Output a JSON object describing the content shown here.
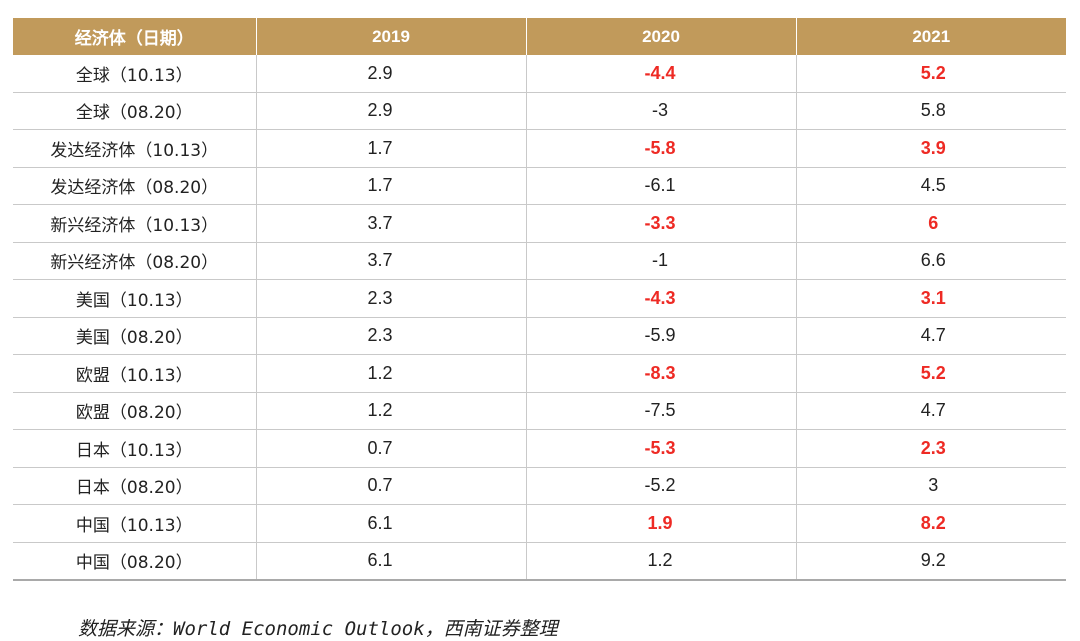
{
  "table": {
    "headers": [
      "经济体（日期）",
      "2019",
      "2020",
      "2021"
    ],
    "rows": [
      {
        "label": "全球（10.13）",
        "y2019": "2.9",
        "y2020": "-4.4",
        "y2021": "5.2",
        "highlight": true
      },
      {
        "label": "全球（08.20）",
        "y2019": "2.9",
        "y2020": "-3",
        "y2021": "5.8",
        "highlight": false
      },
      {
        "label": "发达经济体（10.13）",
        "y2019": "1.7",
        "y2020": "-5.8",
        "y2021": "3.9",
        "highlight": true
      },
      {
        "label": "发达经济体（08.20）",
        "y2019": "1.7",
        "y2020": "-6.1",
        "y2021": "4.5",
        "highlight": false
      },
      {
        "label": "新兴经济体（10.13）",
        "y2019": "3.7",
        "y2020": "-3.3",
        "y2021": "6",
        "highlight": true
      },
      {
        "label": "新兴经济体（08.20）",
        "y2019": "3.7",
        "y2020": "-1",
        "y2021": "6.6",
        "highlight": false
      },
      {
        "label": "美国（10.13）",
        "y2019": "2.3",
        "y2020": "-4.3",
        "y2021": "3.1",
        "highlight": true
      },
      {
        "label": "美国（08.20）",
        "y2019": "2.3",
        "y2020": "-5.9",
        "y2021": "4.7",
        "highlight": false
      },
      {
        "label": "欧盟（10.13）",
        "y2019": "1.2",
        "y2020": "-8.3",
        "y2021": "5.2",
        "highlight": true
      },
      {
        "label": "欧盟（08.20）",
        "y2019": "1.2",
        "y2020": "-7.5",
        "y2021": "4.7",
        "highlight": false
      },
      {
        "label": "日本（10.13）",
        "y2019": "0.7",
        "y2020": "-5.3",
        "y2021": "2.3",
        "highlight": true
      },
      {
        "label": "日本（08.20）",
        "y2019": "0.7",
        "y2020": "-5.2",
        "y2021": "3",
        "highlight": false
      },
      {
        "label": "中国（10.13）",
        "y2019": "6.1",
        "y2020": "1.9",
        "y2021": "8.2",
        "highlight": true
      },
      {
        "label": "中国（08.20）",
        "y2019": "6.1",
        "y2020": "1.2",
        "y2021": "9.2",
        "highlight": false
      }
    ]
  },
  "source": "数据来源：World Economic Outlook，西南证券整理",
  "colors": {
    "header_bg": "#c19a5b",
    "highlight_text": "#ee2a24"
  }
}
